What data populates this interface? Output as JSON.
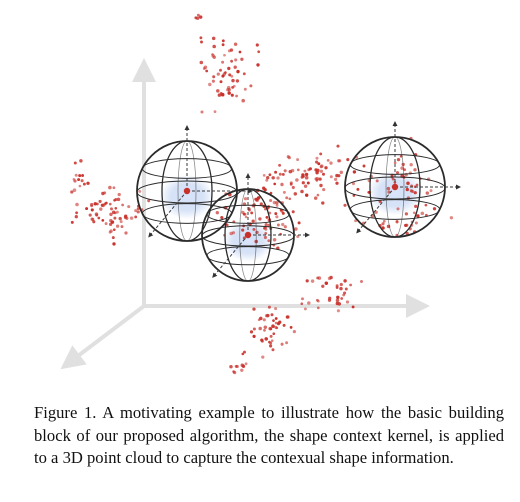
{
  "caption": {
    "text": "Figure 1. A motivating example to illustrate how the basic building block of our proposed algorithm, the shape context kernel, is applied to a 3D point cloud to capture the contexual shape information."
  },
  "colors": {
    "point": "#c8302a",
    "axis": "#e0e0e0",
    "sphere_stroke": "#2b2b2b",
    "kernel_arrow": "#3a3a3a",
    "glow": "#b7ccf0"
  },
  "icons": [
    "coordinate-axes",
    "shape-context-sphere",
    "point-cloud"
  ]
}
